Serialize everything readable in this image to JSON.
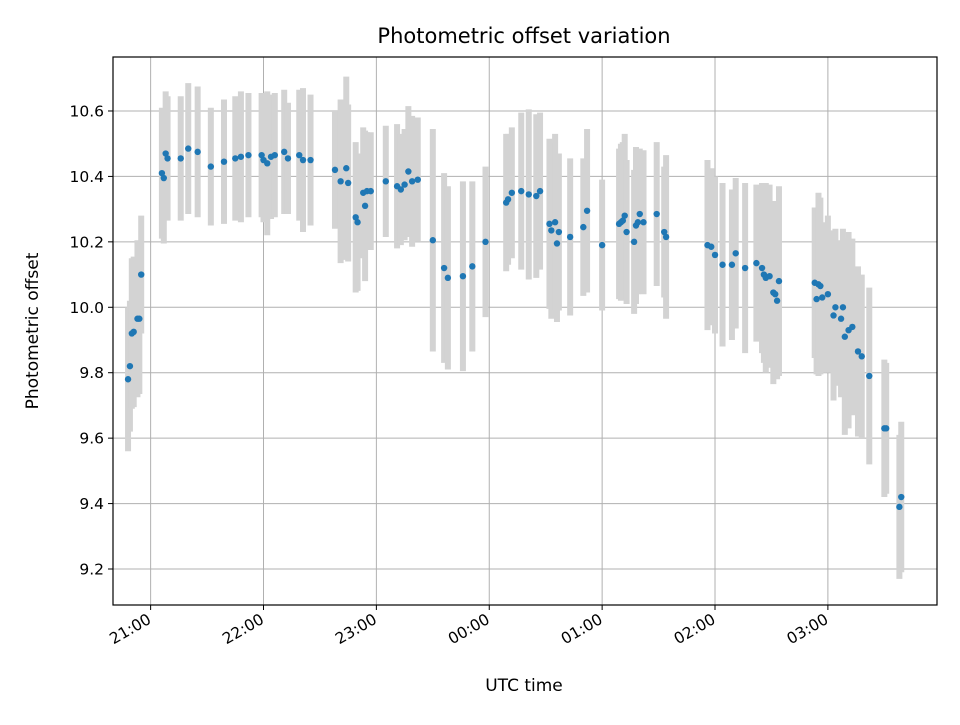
{
  "chart_data": {
    "type": "scatter",
    "title": "Photometric offset variation",
    "xlabel": "UTC time",
    "ylabel": "Photometric offset",
    "x_is_time": true,
    "x_range": [
      "20:40",
      "03:58"
    ],
    "ylim": [
      9.09,
      10.765
    ],
    "grid": true,
    "x_ticks": [
      "21:00",
      "22:00",
      "23:00",
      "00:00",
      "01:00",
      "02:00",
      "03:00"
    ],
    "y_ticks": [
      "9.2",
      "9.4",
      "9.6",
      "9.8",
      "10.0",
      "10.2",
      "10.4",
      "10.6"
    ],
    "colors": {
      "points": "#1f77b4",
      "errorbars": "#d3d3d3",
      "grid": "#b0b0b0"
    },
    "x_label_rotation": 30,
    "series": [
      {
        "points": [
          {
            "x": "20:48",
            "y": 9.78,
            "err": 0.22
          },
          {
            "x": "20:49",
            "y": 9.82,
            "err": 0.2
          },
          {
            "x": "20:50",
            "y": 9.92,
            "err": 0.23
          },
          {
            "x": "20:51",
            "y": 9.925,
            "err": 0.23
          },
          {
            "x": "20:53",
            "y": 9.965,
            "err": 0.24
          },
          {
            "x": "20:54",
            "y": 9.965,
            "err": 0.23
          },
          {
            "x": "20:55",
            "y": 10.1,
            "err": 0.18
          },
          {
            "x": "21:06",
            "y": 10.41,
            "err": 0.2
          },
          {
            "x": "21:07",
            "y": 10.395,
            "err": 0.2
          },
          {
            "x": "21:08",
            "y": 10.47,
            "err": 0.19
          },
          {
            "x": "21:09",
            "y": 10.455,
            "err": 0.19
          },
          {
            "x": "21:16",
            "y": 10.455,
            "err": 0.19
          },
          {
            "x": "21:20",
            "y": 10.485,
            "err": 0.2
          },
          {
            "x": "21:25",
            "y": 10.475,
            "err": 0.2
          },
          {
            "x": "21:32",
            "y": 10.43,
            "err": 0.18
          },
          {
            "x": "21:39",
            "y": 10.445,
            "err": 0.19
          },
          {
            "x": "21:45",
            "y": 10.455,
            "err": 0.19
          },
          {
            "x": "21:48",
            "y": 10.46,
            "err": 0.2
          },
          {
            "x": "21:52",
            "y": 10.465,
            "err": 0.19
          },
          {
            "x": "21:59",
            "y": 10.465,
            "err": 0.19
          },
          {
            "x": "22:00",
            "y": 10.45,
            "err": 0.19
          },
          {
            "x": "22:02",
            "y": 10.44,
            "err": 0.22
          },
          {
            "x": "22:04",
            "y": 10.46,
            "err": 0.19
          },
          {
            "x": "22:06",
            "y": 10.465,
            "err": 0.19
          },
          {
            "x": "22:11",
            "y": 10.475,
            "err": 0.19
          },
          {
            "x": "22:13",
            "y": 10.455,
            "err": 0.17
          },
          {
            "x": "22:19",
            "y": 10.465,
            "err": 0.2
          },
          {
            "x": "22:21",
            "y": 10.45,
            "err": 0.22
          },
          {
            "x": "22:25",
            "y": 10.45,
            "err": 0.2
          },
          {
            "x": "22:38",
            "y": 10.42,
            "err": 0.18
          },
          {
            "x": "22:41",
            "y": 10.385,
            "err": 0.25
          },
          {
            "x": "22:44",
            "y": 10.425,
            "err": 0.28
          },
          {
            "x": "22:45",
            "y": 10.38,
            "err": 0.24
          },
          {
            "x": "22:49",
            "y": 10.275,
            "err": 0.23
          },
          {
            "x": "22:50",
            "y": 10.26,
            "err": 0.21
          },
          {
            "x": "22:53",
            "y": 10.35,
            "err": 0.2
          },
          {
            "x": "22:54",
            "y": 10.31,
            "err": 0.23
          },
          {
            "x": "22:55",
            "y": 10.355,
            "err": 0.18
          },
          {
            "x": "22:57",
            "y": 10.355,
            "err": 0.18
          },
          {
            "x": "23:05",
            "y": 10.385,
            "err": 0.17
          },
          {
            "x": "23:11",
            "y": 10.37,
            "err": 0.19
          },
          {
            "x": "23:13",
            "y": 10.36,
            "err": 0.17
          },
          {
            "x": "23:15",
            "y": 10.375,
            "err": 0.17
          },
          {
            "x": "23:17",
            "y": 10.415,
            "err": 0.2
          },
          {
            "x": "23:19",
            "y": 10.385,
            "err": 0.2
          },
          {
            "x": "23:22",
            "y": 10.39,
            "err": 0.19
          },
          {
            "x": "23:30",
            "y": 10.205,
            "err": 0.34
          },
          {
            "x": "23:36",
            "y": 10.12,
            "err": 0.29
          },
          {
            "x": "23:38",
            "y": 10.09,
            "err": 0.28
          },
          {
            "x": "23:46",
            "y": 10.095,
            "err": 0.29
          },
          {
            "x": "23:51",
            "y": 10.125,
            "err": 0.26
          },
          {
            "x": "23:58",
            "y": 10.2,
            "err": 0.23
          },
          {
            "x": "00:09",
            "y": 10.32,
            "err": 0.21
          },
          {
            "x": "00:10",
            "y": 10.33,
            "err": 0.2
          },
          {
            "x": "00:12",
            "y": 10.35,
            "err": 0.2
          },
          {
            "x": "00:17",
            "y": 10.355,
            "err": 0.24
          },
          {
            "x": "00:21",
            "y": 10.345,
            "err": 0.26
          },
          {
            "x": "00:25",
            "y": 10.34,
            "err": 0.25
          },
          {
            "x": "00:27",
            "y": 10.355,
            "err": 0.24
          },
          {
            "x": "00:32",
            "y": 10.255,
            "err": 0.26
          },
          {
            "x": "00:33",
            "y": 10.235,
            "err": 0.27
          },
          {
            "x": "00:35",
            "y": 10.26,
            "err": 0.27
          },
          {
            "x": "00:36",
            "y": 10.195,
            "err": 0.24
          },
          {
            "x": "00:37",
            "y": 10.23,
            "err": 0.24
          },
          {
            "x": "00:43",
            "y": 10.215,
            "err": 0.24
          },
          {
            "x": "00:50",
            "y": 10.245,
            "err": 0.21
          },
          {
            "x": "00:52",
            "y": 10.295,
            "err": 0.25
          },
          {
            "x": "01:00",
            "y": 10.19,
            "err": 0.2
          },
          {
            "x": "01:09",
            "y": 10.255,
            "err": 0.23
          },
          {
            "x": "01:10",
            "y": 10.26,
            "err": 0.24
          },
          {
            "x": "01:11",
            "y": 10.265,
            "err": 0.24
          },
          {
            "x": "01:12",
            "y": 10.28,
            "err": 0.25
          },
          {
            "x": "01:13",
            "y": 10.23,
            "err": 0.22
          },
          {
            "x": "01:17",
            "y": 10.2,
            "err": 0.22
          },
          {
            "x": "01:18",
            "y": 10.25,
            "err": 0.24
          },
          {
            "x": "01:19",
            "y": 10.26,
            "err": 0.22
          },
          {
            "x": "01:20",
            "y": 10.285,
            "err": 0.2
          },
          {
            "x": "01:22",
            "y": 10.26,
            "err": 0.22
          },
          {
            "x": "01:29",
            "y": 10.285,
            "err": 0.22
          },
          {
            "x": "01:33",
            "y": 10.23,
            "err": 0.2
          },
          {
            "x": "01:34",
            "y": 10.215,
            "err": 0.25
          },
          {
            "x": "01:56",
            "y": 10.19,
            "err": 0.26
          },
          {
            "x": "01:58",
            "y": 10.185,
            "err": 0.24
          },
          {
            "x": "02:00",
            "y": 10.16,
            "err": 0.24
          },
          {
            "x": "02:04",
            "y": 10.13,
            "err": 0.25
          },
          {
            "x": "02:09",
            "y": 10.13,
            "err": 0.23
          },
          {
            "x": "02:11",
            "y": 10.165,
            "err": 0.23
          },
          {
            "x": "02:16",
            "y": 10.12,
            "err": 0.26
          },
          {
            "x": "02:22",
            "y": 10.135,
            "err": 0.24
          },
          {
            "x": "02:25",
            "y": 10.12,
            "err": 0.26
          },
          {
            "x": "02:26",
            "y": 10.1,
            "err": 0.27
          },
          {
            "x": "02:27",
            "y": 10.09,
            "err": 0.29
          },
          {
            "x": "02:29",
            "y": 10.095,
            "err": 0.28
          },
          {
            "x": "02:31",
            "y": 10.045,
            "err": 0.28
          },
          {
            "x": "02:32",
            "y": 10.04,
            "err": 0.24
          },
          {
            "x": "02:33",
            "y": 10.02,
            "err": 0.24
          },
          {
            "x": "02:34",
            "y": 10.08,
            "err": 0.29
          },
          {
            "x": "02:53",
            "y": 10.075,
            "err": 0.23
          },
          {
            "x": "02:54",
            "y": 10.025,
            "err": 0.23
          },
          {
            "x": "02:55",
            "y": 10.07,
            "err": 0.28
          },
          {
            "x": "02:56",
            "y": 10.065,
            "err": 0.27
          },
          {
            "x": "02:57",
            "y": 10.03,
            "err": 0.23
          },
          {
            "x": "03:00",
            "y": 10.04,
            "err": 0.24
          },
          {
            "x": "03:03",
            "y": 9.975,
            "err": 0.26
          },
          {
            "x": "03:04",
            "y": 10.0,
            "err": 0.24
          },
          {
            "x": "03:07",
            "y": 9.965,
            "err": 0.24
          },
          {
            "x": "03:08",
            "y": 10.0,
            "err": 0.24
          },
          {
            "x": "03:09",
            "y": 9.91,
            "err": 0.3
          },
          {
            "x": "03:11",
            "y": 9.93,
            "err": 0.3
          },
          {
            "x": "03:13",
            "y": 9.94,
            "err": 0.27
          },
          {
            "x": "03:16",
            "y": 9.865,
            "err": 0.26
          },
          {
            "x": "03:18",
            "y": 9.85,
            "err": 0.25
          },
          {
            "x": "03:22",
            "y": 9.79,
            "err": 0.27
          },
          {
            "x": "03:30",
            "y": 9.63,
            "err": 0.21
          },
          {
            "x": "03:31",
            "y": 9.63,
            "err": 0.2
          },
          {
            "x": "03:38",
            "y": 9.39,
            "err": 0.22
          },
          {
            "x": "03:39",
            "y": 9.42,
            "err": 0.23
          }
        ]
      }
    ]
  }
}
